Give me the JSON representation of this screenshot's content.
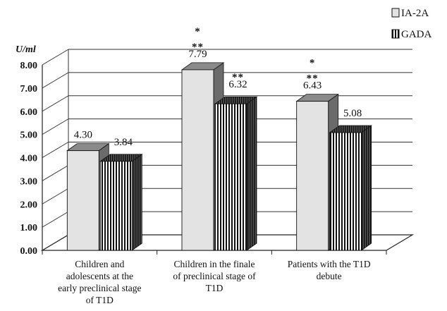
{
  "chart_data": {
    "type": "bar",
    "unit_label": "U/ml",
    "ylim": [
      0,
      8
    ],
    "y_ticks": [
      "0.00",
      "1.00",
      "2.00",
      "3.00",
      "4.00",
      "5.00",
      "6.00",
      "7.00",
      "8.00"
    ],
    "categories": [
      [
        "Children and",
        "adolescents at the",
        "early preclinical stage",
        "of T1D"
      ],
      [
        "Children in the finale",
        "of preclinical stage of",
        "T1D"
      ],
      [
        "Patients with the T1D",
        "debute"
      ]
    ],
    "series": [
      {
        "name": "IA-2A",
        "values": [
          4.3,
          7.79,
          6.43
        ],
        "labels": [
          "4.30",
          "7.79",
          "6.43"
        ],
        "pattern": "solid-light-gray"
      },
      {
        "name": "GADA",
        "values": [
          3.84,
          6.32,
          5.08
        ],
        "labels": [
          "3.84",
          "6.32",
          "5.08"
        ],
        "pattern": "vertical-stripes"
      }
    ],
    "significance": [
      {
        "category_index": 1,
        "series_index": 0,
        "marks": [
          "*",
          "**"
        ]
      },
      {
        "category_index": 1,
        "series_index": 1,
        "marks": [
          "**"
        ]
      },
      {
        "category_index": 2,
        "series_index": 0,
        "marks": [
          "*",
          "**"
        ]
      }
    ],
    "legend_position": "top-right",
    "grid": true,
    "style": "3d-column"
  }
}
